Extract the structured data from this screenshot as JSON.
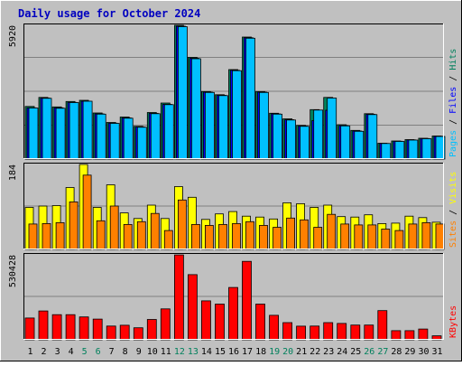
{
  "chart_data": {
    "type": "bar",
    "title": "Daily usage for October 2024",
    "categories": [
      "1",
      "2",
      "3",
      "4",
      "5",
      "6",
      "7",
      "8",
      "9",
      "10",
      "11",
      "12",
      "13",
      "14",
      "15",
      "16",
      "17",
      "18",
      "19",
      "20",
      "21",
      "22",
      "23",
      "24",
      "25",
      "26",
      "27",
      "28",
      "29",
      "30",
      "31"
    ],
    "weekend_days": [
      "5",
      "6",
      "12",
      "13",
      "19",
      "20",
      "26",
      "27"
    ],
    "legend": {
      "top": [
        "Pages",
        "Files",
        "Hits"
      ],
      "middle": [
        "Sites",
        "Visits"
      ],
      "bottom": [
        "KBytes"
      ]
    },
    "panels": {
      "top": {
        "max_label": "5920",
        "ylim": [
          0,
          5920
        ],
        "series": [
          {
            "name": "Hits",
            "color": "#00805c",
            "values": [
              2330,
              2730,
              2310,
              2550,
              2600,
              2040,
              1620,
              1860,
              1450,
              2060,
              2480,
              5920,
              4500,
              2990,
              2850,
              3960,
              5400,
              2990,
              2030,
              1780,
              1490,
              2190,
              2730,
              1520,
              1270,
              2010,
              700,
              800,
              860,
              920,
              1020
            ]
          },
          {
            "name": "Files",
            "color": "#0000ff",
            "values": [
              2270,
              2700,
              2270,
              2510,
              2560,
              2000,
              1590,
              1820,
              1420,
              2020,
              2420,
              5880,
              4460,
              2960,
              2820,
              3930,
              5370,
              2960,
              2000,
              1740,
              1460,
              1700,
              2160,
              1480,
              1240,
              1980,
              690,
              790,
              850,
              910,
              1010
            ]
          },
          {
            "name": "Pages",
            "color": "#00c0ff",
            "values": [
              2260,
              2690,
              2250,
              2500,
              2560,
              1990,
              1580,
              1810,
              1410,
              2010,
              2410,
              5860,
              4440,
              2950,
              2810,
              3910,
              5350,
              2950,
              1990,
              1730,
              1450,
              2170,
              2700,
              1470,
              1230,
              1970,
              690,
              780,
              840,
              900,
              1000
            ]
          }
        ]
      },
      "middle": {
        "max_label": "184",
        "ylim": [
          0,
          184
        ],
        "series": [
          {
            "name": "Visits",
            "color": "#ffff00",
            "values": [
              91,
              94,
              95,
              134,
              184,
              91,
              140,
              79,
              67,
              96,
              67,
              136,
              113,
              65,
              77,
              82,
              72,
              70,
              66,
              101,
              99,
              91,
              96,
              71,
              70,
              75,
              56,
              57,
              72,
              69,
              59
            ]
          },
          {
            "name": "Sites",
            "color": "#ff8000",
            "values": [
              55,
              56,
              58,
              103,
              161,
              62,
              94,
              54,
              60,
              78,
              41,
              107,
              54,
              52,
              54,
              56,
              60,
              52,
              48,
              68,
              64,
              48,
              76,
              55,
              53,
              53,
              44,
              41,
              55,
              58,
              55
            ]
          }
        ]
      },
      "bottom": {
        "max_label": "530428",
        "ylim": [
          0,
          530428
        ],
        "series": [
          {
            "name": "KBytes",
            "color": "#ff0000",
            "values": [
              136000,
              180000,
              157000,
              157000,
              143000,
              129000,
              86000,
              91000,
              75000,
              127000,
              193000,
              530000,
              407000,
              243000,
              223000,
              327000,
              490000,
              223000,
              153000,
              107000,
              85000,
              86000,
              107000,
              102000,
              92000,
              92000,
              182000,
              57000,
              57000,
              67000,
              25000
            ]
          }
        ]
      }
    }
  }
}
